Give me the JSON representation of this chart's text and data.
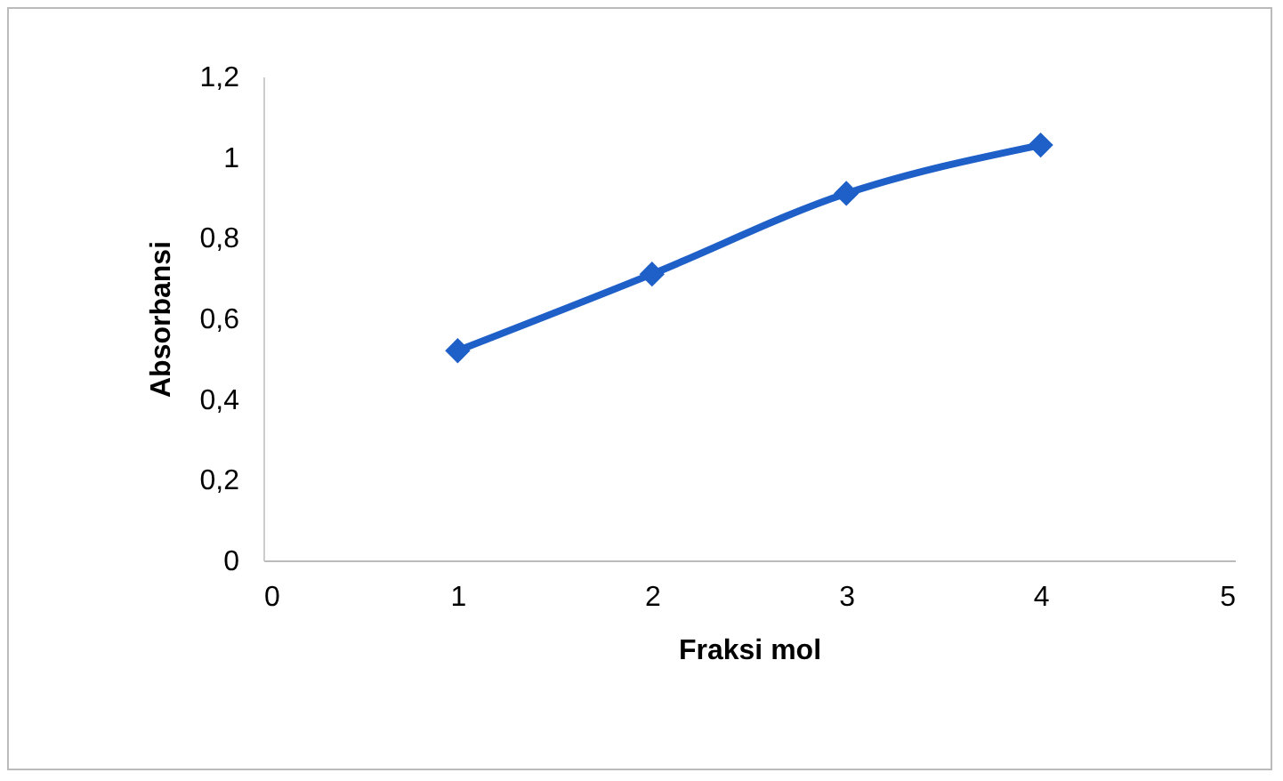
{
  "chart_data": {
    "type": "line",
    "xlabel": "Fraksi mol",
    "ylabel": "Absorbansi",
    "x": [
      1,
      2,
      3,
      4
    ],
    "series": [
      {
        "color": "#1f5fc8",
        "values": [
          0.52,
          0.71,
          0.91,
          1.03
        ]
      }
    ],
    "xlim": [
      0,
      5
    ],
    "xticks": [
      0,
      1,
      2,
      3,
      4,
      5
    ],
    "ylim": [
      0,
      1.2
    ],
    "yticks": [
      0,
      {
        "value": 0.2,
        "label": "0,2"
      },
      {
        "value": 0.4,
        "label": "0,4"
      },
      {
        "value": 0.6,
        "label": "0,6"
      },
      {
        "value": 0.8,
        "label": "0,8"
      },
      1,
      {
        "value": 1.2,
        "label": "1,2"
      }
    ],
    "grid": false,
    "marker": "diamond",
    "line_style": "solid"
  }
}
